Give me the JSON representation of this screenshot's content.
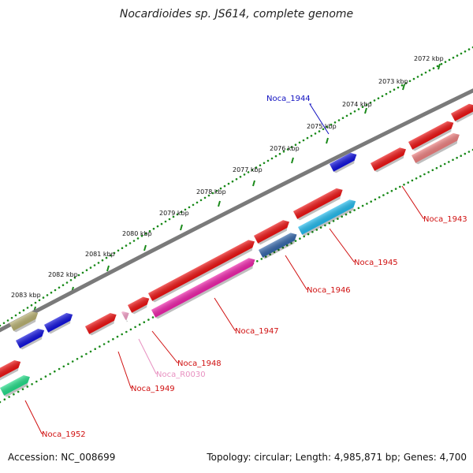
{
  "title": "Nocardioides sp. JS614, complete genome",
  "footer": {
    "accession": "Accession: NC_008699",
    "summary": "Topology: circular; Length: 4,985,871 bp; Genes: 4,700"
  },
  "scale_labels": [
    "2072 kbp",
    "2073 kbp",
    "2074 kbp",
    "2075 kbp",
    "2076 kbp",
    "2077 kbp",
    "2078 kbp",
    "2079 kbp",
    "2080 kbp",
    "2081 kbp",
    "2082 kbp",
    "2083 kbp"
  ],
  "gene_labels": [
    {
      "text": "Noca_1944",
      "color": "#1010c0"
    },
    {
      "text": "Noca_1943",
      "color": "#d01010"
    },
    {
      "text": "Noca_1945",
      "color": "#d01010"
    },
    {
      "text": "Noca_1946",
      "color": "#d01010"
    },
    {
      "text": "Noca_1947",
      "color": "#d01010"
    },
    {
      "text": "Noca_1948",
      "color": "#d01010"
    },
    {
      "text": "Noca_R0030",
      "color": "#e890c0"
    },
    {
      "text": "Noca_1949",
      "color": "#d01010"
    },
    {
      "text": "Noca_1952",
      "color": "#d01010"
    }
  ],
  "colors": {
    "backbone": "#7a7a7a",
    "scale_dots": "#1a8a1a",
    "red": "#ee1111",
    "blue": "#1010dd",
    "cyan": "#22bbee",
    "pink": "#ee22aa",
    "light_red": "#ee8080",
    "olive": "#b8b070",
    "green": "#22dd88",
    "steel": "#3366aa"
  }
}
